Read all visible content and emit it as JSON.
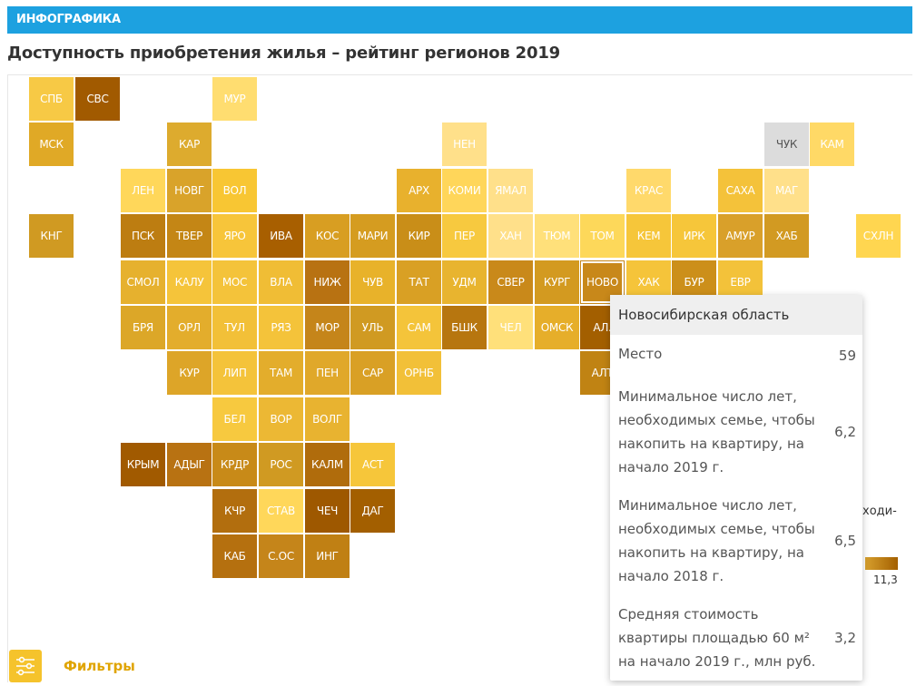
{
  "header": {
    "section_label": "ИНФОГРАФИКА"
  },
  "page_title": "Доступность приобретения жилья – рейтинг регионов 2019",
  "filters": {
    "label": "Фильтры",
    "icon": "sliders-icon"
  },
  "legend": {
    "fragment": "ходи-",
    "max_label": "11,3"
  },
  "tooltip": {
    "region": "Новосибирская область",
    "rows": [
      {
        "label": "Место",
        "value": "59"
      },
      {
        "label": "Минимальное число лет, необходимых семье, чтобы накопить на квартиру, на начало 2019 г.",
        "value": "6,2"
      },
      {
        "label": "Минимальное число лет, необходимых семье, чтобы накопить на квартиру, на начало 2018 г.",
        "value": "6,5"
      },
      {
        "label": "Средняя стоимость квартиры площадью 60 м² на начало 2019 г., млн руб.",
        "value": "3,2"
      }
    ]
  },
  "colors": {
    "header_bg": "#1da1e0",
    "no_data": "#dcdcdc",
    "light": "#ffe08a",
    "mid": "#f5c12e",
    "dark": "#a35f00"
  },
  "chart_data": {
    "type": "heatmap",
    "title": "Доступность приобретения жилья – рейтинг регионов 2019",
    "selected": "НОВО",
    "tiles": [
      {
        "code": "СПБ",
        "col": 0,
        "row": 0,
        "color": "#f7c945"
      },
      {
        "code": "СВС",
        "col": 1,
        "row": 0,
        "color": "#a15a00"
      },
      {
        "code": "МУР",
        "col": 4,
        "row": 0,
        "color": "#ffdd70"
      },
      {
        "code": "МСК",
        "col": 0,
        "row": 1,
        "color": "#e0a926"
      },
      {
        "code": "КАР",
        "col": 3,
        "row": 1,
        "color": "#ddab2e"
      },
      {
        "code": "НЕН",
        "col": 9,
        "row": 1,
        "color": "#ffe08a"
      },
      {
        "code": "ЧУК",
        "col": 16,
        "row": 1,
        "color": "#dcdcdc"
      },
      {
        "code": "КАМ",
        "col": 17,
        "row": 1,
        "color": "#ffd966"
      },
      {
        "code": "ЛЕН",
        "col": 2,
        "row": 2,
        "color": "#ffd75a"
      },
      {
        "code": "НОВГ",
        "col": 3,
        "row": 2,
        "color": "#d9a32a"
      },
      {
        "code": "ВОЛ",
        "col": 4,
        "row": 2,
        "color": "#f8c633"
      },
      {
        "code": "АРХ",
        "col": 8,
        "row": 2,
        "color": "#e8b12d"
      },
      {
        "code": "КОМИ",
        "col": 9,
        "row": 2,
        "color": "#ffd65a"
      },
      {
        "code": "ЯМАЛ",
        "col": 10,
        "row": 2,
        "color": "#ffe08a"
      },
      {
        "code": "КРАС",
        "col": 13,
        "row": 2,
        "color": "#ffd96b"
      },
      {
        "code": "САХА",
        "col": 15,
        "row": 2,
        "color": "#f4c23a"
      },
      {
        "code": "МАГ",
        "col": 16,
        "row": 2,
        "color": "#ffe08a"
      },
      {
        "code": "КНГ",
        "col": 0,
        "row": 3,
        "color": "#d09a22"
      },
      {
        "code": "ПСК",
        "col": 2,
        "row": 3,
        "color": "#bd7d11"
      },
      {
        "code": "ТВЕР",
        "col": 3,
        "row": 3,
        "color": "#c48615"
      },
      {
        "code": "ЯРО",
        "col": 4,
        "row": 3,
        "color": "#f7c53a"
      },
      {
        "code": "ИВА",
        "col": 5,
        "row": 3,
        "color": "#a85f00"
      },
      {
        "code": "КОС",
        "col": 6,
        "row": 3,
        "color": "#d89e22"
      },
      {
        "code": "МАРИ",
        "col": 7,
        "row": 3,
        "color": "#d59c20"
      },
      {
        "code": "КИР",
        "col": 8,
        "row": 3,
        "color": "#c98e18"
      },
      {
        "code": "ПЕР",
        "col": 9,
        "row": 3,
        "color": "#f7c93f"
      },
      {
        "code": "ХАН",
        "col": 10,
        "row": 3,
        "color": "#ffe08a"
      },
      {
        "code": "ТЮМ",
        "col": 11,
        "row": 3,
        "color": "#ffe07a"
      },
      {
        "code": "ТОМ",
        "col": 12,
        "row": 3,
        "color": "#fdd85a"
      },
      {
        "code": "КЕМ",
        "col": 13,
        "row": 3,
        "color": "#f6c63a"
      },
      {
        "code": "ИРК",
        "col": 14,
        "row": 3,
        "color": "#f6c63a"
      },
      {
        "code": "АМУР",
        "col": 15,
        "row": 3,
        "color": "#d9a02a"
      },
      {
        "code": "ХАБ",
        "col": 16,
        "row": 3,
        "color": "#d29a22"
      },
      {
        "code": "СХЛН",
        "col": 18,
        "row": 3,
        "color": "#ffd650"
      },
      {
        "code": "СМОЛ",
        "col": 2,
        "row": 4,
        "color": "#e6b12e"
      },
      {
        "code": "КАЛУ",
        "col": 3,
        "row": 4,
        "color": "#f5c43a"
      },
      {
        "code": "МОС",
        "col": 4,
        "row": 4,
        "color": "#f4c33a"
      },
      {
        "code": "ВЛА",
        "col": 5,
        "row": 4,
        "color": "#f0bd35"
      },
      {
        "code": "НИЖ",
        "col": 6,
        "row": 4,
        "color": "#b87212"
      },
      {
        "code": "ЧУВ",
        "col": 7,
        "row": 4,
        "color": "#e8b22a"
      },
      {
        "code": "ТАТ",
        "col": 8,
        "row": 4,
        "color": "#d9a024"
      },
      {
        "code": "УДМ",
        "col": 9,
        "row": 4,
        "color": "#e8b42f"
      },
      {
        "code": "СВЕР",
        "col": 10,
        "row": 4,
        "color": "#c9891a"
      },
      {
        "code": "КУРГ",
        "col": 11,
        "row": 4,
        "color": "#d39a20"
      },
      {
        "code": "НОВО",
        "col": 12,
        "row": 4,
        "color": "#c8881a"
      },
      {
        "code": "ХАК",
        "col": 13,
        "row": 4,
        "color": "#f5c43a"
      },
      {
        "code": "БУР",
        "col": 14,
        "row": 4,
        "color": "#cc8f1a"
      },
      {
        "code": "ЕВР",
        "col": 15,
        "row": 4,
        "color": "#f3c23a"
      },
      {
        "code": "БРЯ",
        "col": 2,
        "row": 5,
        "color": "#dca728"
      },
      {
        "code": "ОРЛ",
        "col": 3,
        "row": 5,
        "color": "#e3ad2c"
      },
      {
        "code": "ТУЛ",
        "col": 4,
        "row": 5,
        "color": "#f2c038"
      },
      {
        "code": "РЯЗ",
        "col": 5,
        "row": 5,
        "color": "#f4c33a"
      },
      {
        "code": "МОР",
        "col": 6,
        "row": 5,
        "color": "#c5851a"
      },
      {
        "code": "УЛЬ",
        "col": 7,
        "row": 5,
        "color": "#d09a22"
      },
      {
        "code": "САМ",
        "col": 8,
        "row": 5,
        "color": "#f4c43a"
      },
      {
        "code": "БШК",
        "col": 9,
        "row": 5,
        "color": "#b7760f"
      },
      {
        "code": "ЧЕЛ",
        "col": 10,
        "row": 5,
        "color": "#ffe07a"
      },
      {
        "code": "ОМСК",
        "col": 11,
        "row": 5,
        "color": "#e6ae2a"
      },
      {
        "code": "АЛ.",
        "col": 12,
        "row": 5,
        "color": "#a35f00"
      },
      {
        "code": "КУР",
        "col": 3,
        "row": 6,
        "color": "#dda528"
      },
      {
        "code": "ЛИП",
        "col": 4,
        "row": 6,
        "color": "#f4c33a"
      },
      {
        "code": "ТАМ",
        "col": 5,
        "row": 6,
        "color": "#e3ad2c"
      },
      {
        "code": "ПЕН",
        "col": 6,
        "row": 6,
        "color": "#e0a82a"
      },
      {
        "code": "САР",
        "col": 7,
        "row": 6,
        "color": "#d9a025"
      },
      {
        "code": "ОРНБ",
        "col": 8,
        "row": 6,
        "color": "#f2c038"
      },
      {
        "code": "АЛТ",
        "col": 12,
        "row": 6,
        "color": "#c08313"
      },
      {
        "code": "БЕЛ",
        "col": 4,
        "row": 7,
        "color": "#f7c93f"
      },
      {
        "code": "ВОР",
        "col": 5,
        "row": 7,
        "color": "#ecb834"
      },
      {
        "code": "ВОЛГ",
        "col": 6,
        "row": 7,
        "color": "#e8b330"
      },
      {
        "code": "КРЫМ",
        "col": 2,
        "row": 8,
        "color": "#a15a00"
      },
      {
        "code": "АДЫГ",
        "col": 3,
        "row": 8,
        "color": "#b87212"
      },
      {
        "code": "КРДР",
        "col": 4,
        "row": 8,
        "color": "#c88a18"
      },
      {
        "code": "РОС",
        "col": 5,
        "row": 8,
        "color": "#d09a22"
      },
      {
        "code": "КАЛМ",
        "col": 6,
        "row": 8,
        "color": "#b06c0c"
      },
      {
        "code": "АСТ",
        "col": 7,
        "row": 8,
        "color": "#f6c63a"
      },
      {
        "code": "КЧР",
        "col": 4,
        "row": 9,
        "color": "#b26e0e"
      },
      {
        "code": "СТАВ",
        "col": 5,
        "row": 9,
        "color": "#ffd75a"
      },
      {
        "code": "ЧЕЧ",
        "col": 6,
        "row": 9,
        "color": "#9e5800"
      },
      {
        "code": "ДАГ",
        "col": 7,
        "row": 9,
        "color": "#a35f00"
      },
      {
        "code": "КАБ",
        "col": 4,
        "row": 10,
        "color": "#b5700f"
      },
      {
        "code": "С.ОС",
        "col": 5,
        "row": 10,
        "color": "#c5851a"
      },
      {
        "code": "ИНГ",
        "col": 6,
        "row": 10,
        "color": "#c08014"
      }
    ]
  }
}
